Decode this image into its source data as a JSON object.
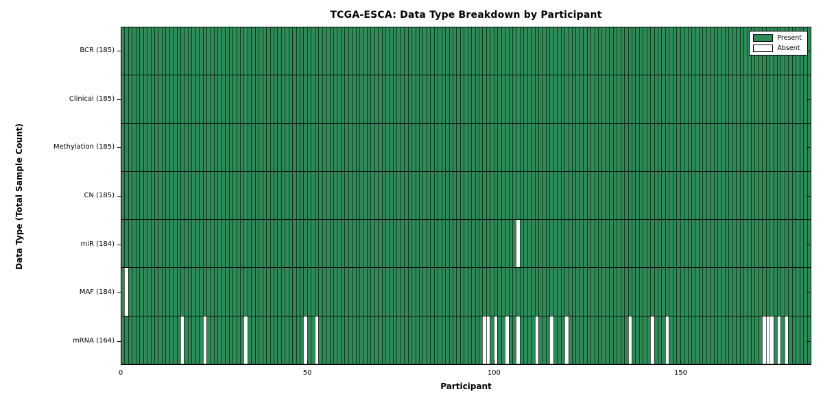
{
  "chart_data": {
    "type": "heatmap",
    "title": "TCGA-ESCA: Data Type Breakdown by Participant",
    "xlabel": "Participant",
    "ylabel": "Data Type (Total Sample Count)",
    "n_participants": 185,
    "x_ticks": [
      0,
      50,
      100,
      150
    ],
    "grid": "cell-edges",
    "legend": {
      "position": "upper-right",
      "present_label": "Present",
      "absent_label": "Absent"
    },
    "colors": {
      "present": "#2e8b57",
      "absent": "#ffffff",
      "edge": "#000000"
    },
    "rows": [
      {
        "data_type": "BCR",
        "count": 185,
        "label": "BCR (185)",
        "absent_participants": []
      },
      {
        "data_type": "Clinical",
        "count": 185,
        "label": "Clinical (185)",
        "absent_participants": []
      },
      {
        "data_type": "Methylation",
        "count": 185,
        "label": "Methylation (185)",
        "absent_participants": []
      },
      {
        "data_type": "CN",
        "count": 185,
        "label": "CN (185)",
        "absent_participants": []
      },
      {
        "data_type": "miR",
        "count": 184,
        "label": "miR (184)",
        "absent_participants": [
          106
        ]
      },
      {
        "data_type": "MAF",
        "count": 184,
        "label": "MAF (184)",
        "absent_participants": [
          1
        ]
      },
      {
        "data_type": "mRNA",
        "count": 164,
        "label": "mRNA (164)",
        "absent_participants": [
          16,
          22,
          33,
          49,
          52,
          97,
          98,
          100,
          103,
          106,
          111,
          115,
          119,
          136,
          142,
          146,
          172,
          173,
          174,
          176,
          178
        ]
      }
    ]
  }
}
